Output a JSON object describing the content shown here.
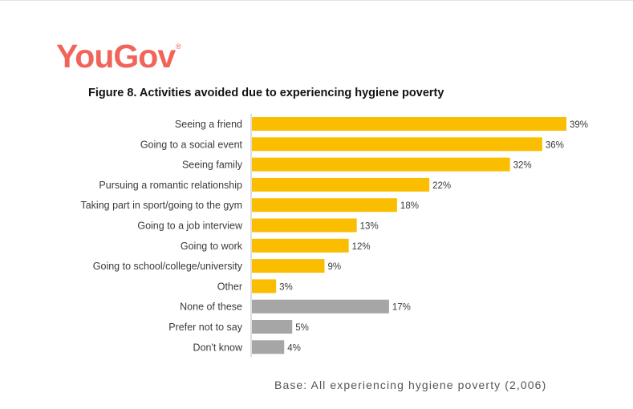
{
  "brand": {
    "logo_text": "YouGov",
    "logo_mark": "®"
  },
  "colors": {
    "logo": "#f0645a",
    "bar_primary": "#fbbd00",
    "bar_secondary": "#a6a6a6",
    "axis": "#bfbfbf"
  },
  "chart_data": {
    "type": "bar",
    "orientation": "horizontal",
    "title": "Figure 8. Activities avoided due to experiencing hygiene poverty",
    "categories": [
      "Seeing a friend",
      "Going to a social event",
      "Seeing family",
      "Pursuing a romantic relationship",
      "Taking part in sport/going to the gym",
      "Going to a job interview",
      "Going to work",
      "Going to school/college/university",
      "Other",
      "None of these",
      "Prefer not to say",
      "Don't know"
    ],
    "values": [
      39,
      36,
      32,
      22,
      18,
      13,
      12,
      9,
      3,
      17,
      5,
      4
    ],
    "value_labels": [
      "39%",
      "36%",
      "32%",
      "22%",
      "18%",
      "13%",
      "12%",
      "9%",
      "3%",
      "17%",
      "5%",
      "4%"
    ],
    "groups": [
      "primary",
      "primary",
      "primary",
      "primary",
      "primary",
      "primary",
      "primary",
      "primary",
      "primary",
      "secondary",
      "secondary",
      "secondary"
    ],
    "unit": "%",
    "xlim": [
      0,
      40
    ],
    "xlabel": "",
    "ylabel": "",
    "grid": false
  },
  "footnote": "Base: All experiencing hygiene poverty (2,006)"
}
